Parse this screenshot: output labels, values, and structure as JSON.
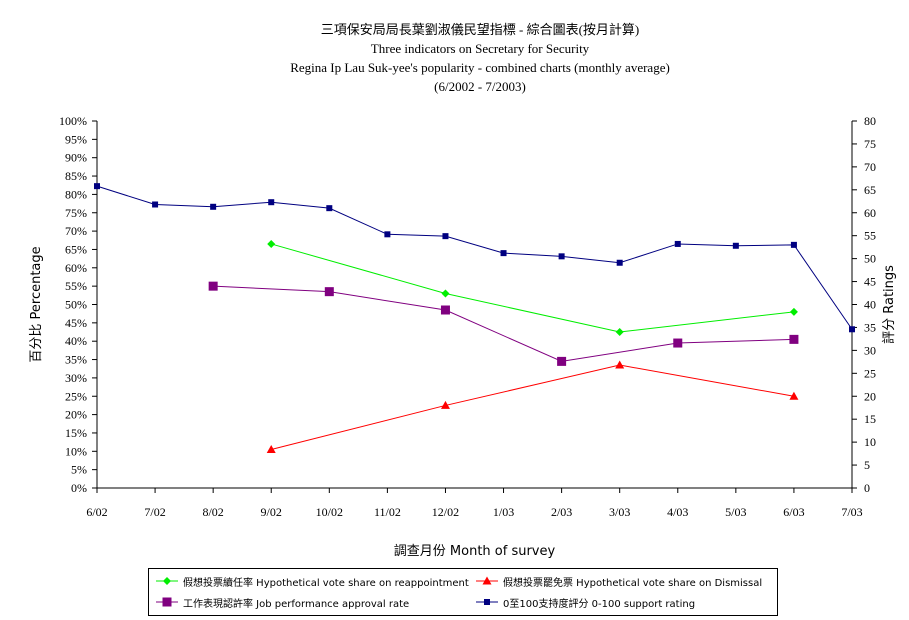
{
  "titles": {
    "line1": "三項保安局局長葉劉淑儀民望指標 - 綜合圖表(按月計算)",
    "line2": "Three indicators on Secretary for Security",
    "line3": "Regina Ip Lau Suk-yee's popularity - combined charts (monthly average)",
    "line4": "(6/2002 - 7/2003)"
  },
  "chart_data": {
    "type": "line",
    "categories": [
      "6/02",
      "7/02",
      "8/02",
      "9/02",
      "10/02",
      "11/02",
      "12/02",
      "1/03",
      "2/03",
      "3/03",
      "4/03",
      "5/03",
      "6/03",
      "7/03"
    ],
    "xlabel": "調查月份  Month of survey",
    "ylabel_left": "百分比  Percentage",
    "ylabel_right": "評分  Ratings",
    "ylim_left": [
      0,
      100
    ],
    "ylim_right": [
      0,
      80
    ],
    "y_ticks_left": [
      "0%",
      "5%",
      "10%",
      "15%",
      "20%",
      "25%",
      "30%",
      "35%",
      "40%",
      "45%",
      "50%",
      "55%",
      "60%",
      "65%",
      "70%",
      "75%",
      "80%",
      "85%",
      "90%",
      "95%",
      "100%"
    ],
    "y_ticks_right": [
      "0",
      "5",
      "10",
      "15",
      "20",
      "25",
      "30",
      "35",
      "40",
      "45",
      "50",
      "55",
      "60",
      "65",
      "70",
      "75",
      "80"
    ],
    "grid": false,
    "legend_position": "bottom",
    "series": [
      {
        "name": "假想投票續任率 Hypothetical vote share on reappointment",
        "axis": "left",
        "color": "#00ee00",
        "marker": "diamond",
        "values": [
          null,
          null,
          null,
          66.5,
          null,
          null,
          53,
          null,
          null,
          42.5,
          null,
          null,
          48,
          null
        ]
      },
      {
        "name": "假想投票罷免票 Hypothetical vote share on Dismissal",
        "axis": "left",
        "color": "#ff0000",
        "marker": "triangle",
        "values": [
          null,
          null,
          null,
          10.5,
          null,
          null,
          22.5,
          null,
          null,
          33.5,
          null,
          null,
          25,
          null
        ]
      },
      {
        "name": "工作表現認許率 Job performance approval rate",
        "axis": "left",
        "color": "#800080",
        "marker": "square",
        "values": [
          null,
          null,
          55,
          null,
          53.5,
          null,
          48.5,
          null,
          34.5,
          null,
          39.5,
          null,
          40.5,
          null
        ]
      },
      {
        "name": "0至100支持度評分 0-100 support rating",
        "axis": "right",
        "color": "#000080",
        "marker": "square-small",
        "values": [
          65.8,
          61.8,
          61.3,
          62.3,
          61,
          55.3,
          54.9,
          51.2,
          50.5,
          49.1,
          53.2,
          52.8,
          53,
          34.6
        ]
      }
    ]
  }
}
